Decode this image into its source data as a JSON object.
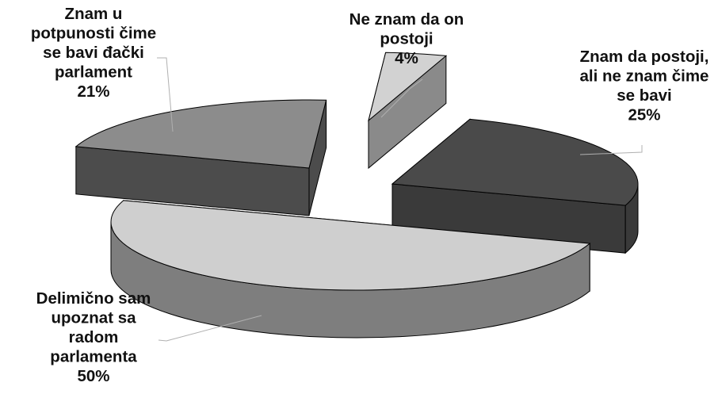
{
  "chart_data": {
    "type": "pie",
    "three_d": true,
    "exploded": true,
    "legend": "none",
    "slices": [
      {
        "label_lines": [
          "Ne znam da on",
          "postoji"
        ],
        "percent_label": "4%",
        "value": 4,
        "color_top": "#d2d2d2",
        "color_side": "#8a8a8a"
      },
      {
        "label_lines": [
          "Znam da postoji,",
          "ali ne znam čime",
          "se bavi"
        ],
        "percent_label": "25%",
        "value": 25,
        "color_top": "#4a4a4a",
        "color_side": "#3a3a3a"
      },
      {
        "label_lines": [
          "Delimično sam",
          "upoznat sa",
          "radom",
          "parlamenta"
        ],
        "percent_label": "50%",
        "value": 50,
        "color_top": "#cfcfcf",
        "color_side": "#7e7e7e"
      },
      {
        "label_lines": [
          "Znam u",
          "potpunosti čime",
          "se bavi đački",
          "parlament"
        ],
        "percent_label": "21%",
        "value": 21,
        "color_top": "#8c8c8c",
        "color_side": "#4c4c4c"
      }
    ]
  }
}
